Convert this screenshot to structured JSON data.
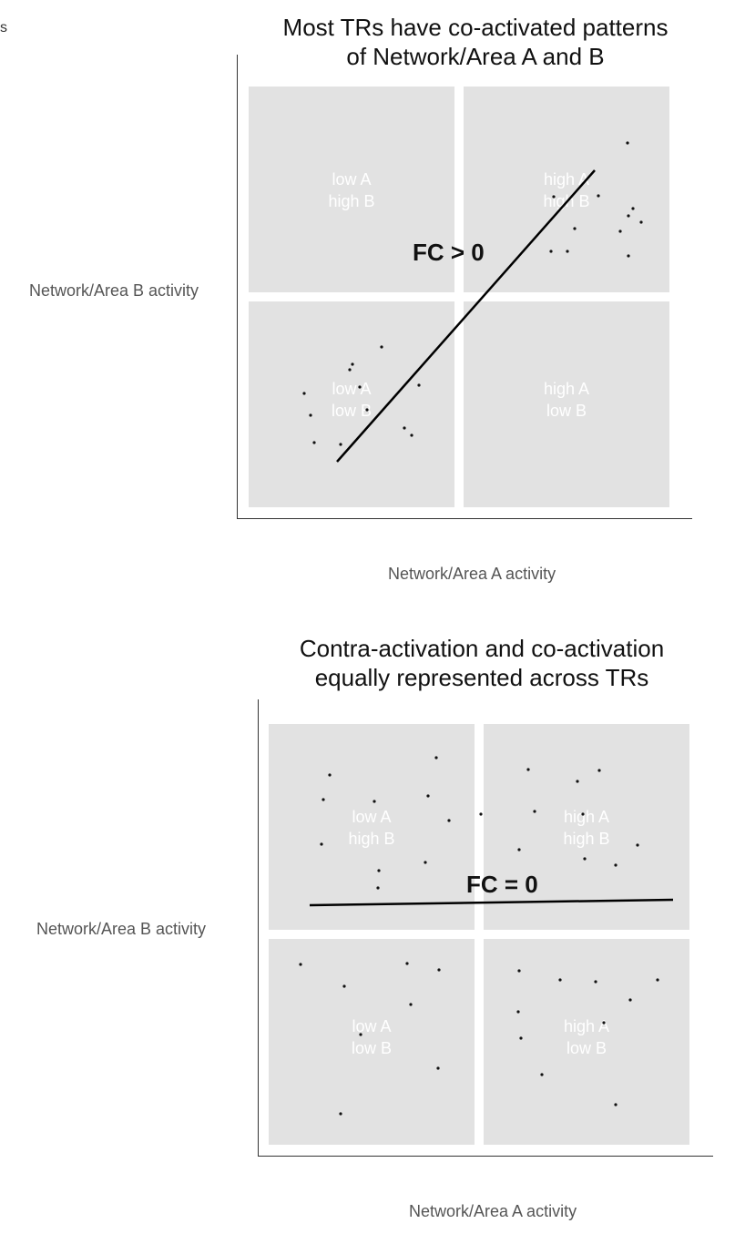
{
  "edge_glyph": "s",
  "panels": [
    {
      "title": "Most TRs have co-activated patterns\nof Network/Area A and B",
      "ylabel": "Network/Area B activity",
      "xlabel": "Network/Area A activity",
      "fc_label": "FC > 0",
      "quadrants": {
        "top_left": [
          "low A",
          "high B"
        ],
        "top_right": [
          "high A",
          "high B"
        ],
        "bottom_left": [
          "low A",
          "low B"
        ],
        "bottom_right": [
          "high A",
          "low B"
        ]
      }
    },
    {
      "title": "Contra-activation and co-activation\nequally represented across TRs",
      "ylabel": "Network/Area B activity",
      "xlabel": "Network/Area A activity",
      "fc_label": "FC = 0",
      "quadrants": {
        "top_left": [
          "low A",
          "high B"
        ],
        "top_right": [
          "high A",
          "high B"
        ],
        "bottom_left": [
          "low A",
          "low B"
        ],
        "bottom_right": [
          "high A",
          "low B"
        ]
      }
    }
  ],
  "colors": {
    "quadrant": "#e2e2e2",
    "points": "#111111",
    "line": "#000000"
  }
}
